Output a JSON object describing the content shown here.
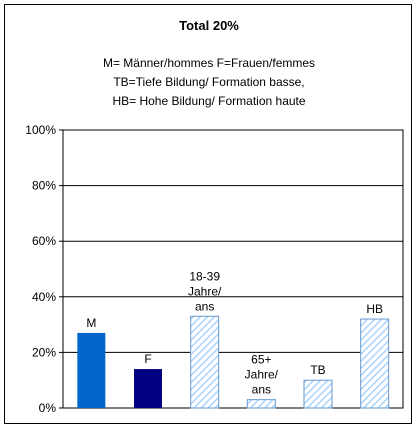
{
  "chart_data": {
    "type": "bar",
    "title": "Total 20%",
    "subtitle_lines": [
      "M= Männer/hommes F=Frauen/femmes",
      "TB=Tiefe Bildung/ Formation basse,",
      "HB= Hohe Bildung/ Formation haute"
    ],
    "categories": [
      "M",
      "F",
      "18-39 Jahre/ ans",
      "65+ Jahre/ ans",
      "TB",
      "HB"
    ],
    "label_lines": [
      [
        "M"
      ],
      [
        "F"
      ],
      [
        "18-39",
        "Jahre/",
        "ans"
      ],
      [
        "65+",
        "Jahre/",
        "ans"
      ],
      [
        "TB"
      ],
      [
        "HB"
      ]
    ],
    "values": [
      27,
      14,
      33,
      3,
      10,
      32
    ],
    "ylim": [
      0,
      100
    ],
    "yticks": [
      "0%",
      "20%",
      "40%",
      "60%",
      "80%",
      "100%"
    ],
    "grid": true,
    "colors": [
      "#0066cc",
      "#000080",
      "hatch",
      "hatch",
      "hatch",
      "hatch"
    ],
    "hatch_color": "#99ccff",
    "hatch_stroke": "#6699cc"
  }
}
